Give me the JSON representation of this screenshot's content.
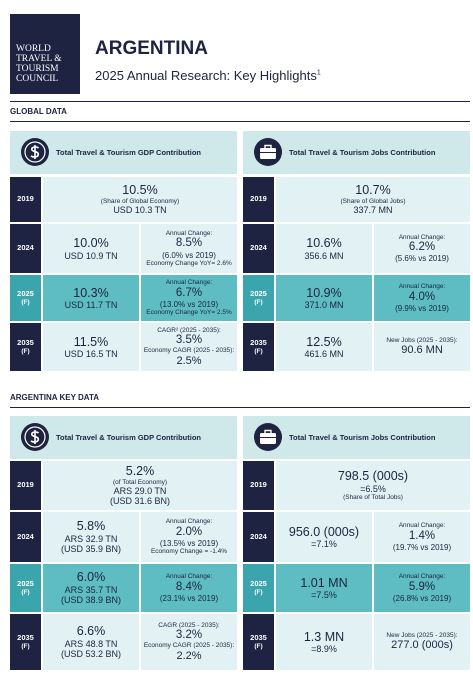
{
  "header": {
    "logo": [
      "WORLD",
      "TRAVEL &",
      "TOURISM",
      "COUNCIL"
    ],
    "title": "ARGENTINA",
    "subtitle": "2025 Annual Research: Key Highlights",
    "footnote_mark": "1"
  },
  "sections": [
    {
      "title": "GLOBAL DATA",
      "panels": [
        {
          "title": "Total Travel & Tourism GDP Contribution",
          "rows": [
            {
              "year": "2019",
              "cell": {
                "share": "10.5%",
                "note": "(Share of Global Economy)",
                "amount": "USD 10.3 TN"
              }
            },
            {
              "year": "2024",
              "left": {
                "share": "10.0%",
                "amount": "USD 10.9 TN"
              },
              "right": {
                "label": "Annual Change:",
                "value": "8.5%",
                "comparison": "(6.0% vs 2019)",
                "label2": "Economy Change YoY= 2.6%"
              }
            },
            {
              "year": "2025",
              "forecast": "(F)",
              "left": {
                "share": "10.3%",
                "amount": "USD 11.7 TN"
              },
              "right": {
                "label": "Annual Change:",
                "value": "6.7%",
                "comparison": "(13.0% vs 2019)",
                "label2": "Economy Change YoY= 2.5%"
              }
            },
            {
              "year": "2035",
              "forecast": "(F)",
              "left": {
                "share": "11.5%",
                "amount": "USD 16.5 TN"
              },
              "right": {
                "label": "CAGR² (2025 - 2035):",
                "value": "3.5%",
                "label2": "Economy CAGR (2025 - 2035):",
                "value2": "2.5%"
              }
            }
          ]
        },
        {
          "title": "Total Travel & Tourism Jobs Contribution",
          "rows": [
            {
              "year": "2019",
              "cell": {
                "share": "10.7%",
                "note": "(Share of Global Jobs)",
                "amount": "337.7 MN"
              }
            },
            {
              "year": "2024",
              "left": {
                "share": "10.6%",
                "amount": "356.6 MN"
              },
              "right": {
                "label": "Annual Change:",
                "value": "6.2%",
                "comparison": "(5.6% vs 2019)"
              }
            },
            {
              "year": "2025",
              "forecast": "(F)",
              "left": {
                "share": "10.9%",
                "amount": "371.0 MN"
              },
              "right": {
                "label": "Annual Change:",
                "value": "4.0%",
                "comparison": "(9.9% vs 2019)"
              }
            },
            {
              "year": "2035",
              "forecast": "(F)",
              "left": {
                "share": "12.5%",
                "amount": "461.6 MN"
              },
              "right": {
                "label": "New Jobs (2025 - 2035):",
                "value2": "90.6 MN"
              }
            }
          ]
        }
      ]
    },
    {
      "title": "ARGENTINA KEY DATA",
      "panels": [
        {
          "title": "Total Travel & Tourism GDP Contribution",
          "rows": [
            {
              "year": "2019",
              "cell": {
                "share": "5.2%",
                "note": "(of Total Economy)",
                "amount": "ARS 29.0 TN",
                "amount2": "(USD 31.6 BN)"
              }
            },
            {
              "year": "2024",
              "left": {
                "share": "5.8%",
                "amount": "ARS 32.9 TN",
                "amount2": "(USD 35.9 BN)"
              },
              "right": {
                "label": "Annual Change:",
                "value": "2.0%",
                "comparison": "(13.5% vs 2019)",
                "label2": "Economy Change = -1.4%"
              }
            },
            {
              "year": "2025",
              "forecast": "(F)",
              "left": {
                "share": "6.0%",
                "amount": "ARS 35.7 TN",
                "amount2": "(USD 38.9 BN)"
              },
              "right": {
                "label": "Annual Change:",
                "value": "8.4%",
                "comparison": "(23.1% vs 2019)"
              }
            },
            {
              "year": "2035",
              "forecast": "(F)",
              "left": {
                "share": "6.6%",
                "amount": "ARS 48.8 TN",
                "amount2": "(USD 53.2 BN)"
              },
              "right": {
                "label": "CAGR (2025 - 2035):",
                "value": "3.2%",
                "label2": "Economy CAGR (2025 - 2035):",
                "value2": "2.2%"
              }
            }
          ]
        },
        {
          "title": "Total Travel & Tourism Jobs Contribution",
          "rows": [
            {
              "year": "2019",
              "cell": {
                "share": "798.5 (000s)",
                "amount": "=6.5%",
                "note": "(Share of Total Jobs)"
              }
            },
            {
              "year": "2024",
              "left": {
                "share": "956.0 (000s)",
                "amount": "=7.1%"
              },
              "right": {
                "label": "Annual Change:",
                "value": "1.4%",
                "comparison": "(19.7% vs 2019)"
              }
            },
            {
              "year": "2025",
              "forecast": "(F)",
              "left": {
                "share": "1.01 MN",
                "amount": "=7.5%"
              },
              "right": {
                "label": "Annual Change:",
                "value": "5.9%",
                "comparison": "(26.8% vs 2019)"
              }
            },
            {
              "year": "2035",
              "forecast": "(F)",
              "left": {
                "share": "1.3 MN",
                "amount": "=8.9%"
              },
              "right": {
                "label": "New Jobs (2025 - 2035):",
                "value2": "277.0 (000s)"
              }
            }
          ]
        }
      ]
    }
  ]
}
